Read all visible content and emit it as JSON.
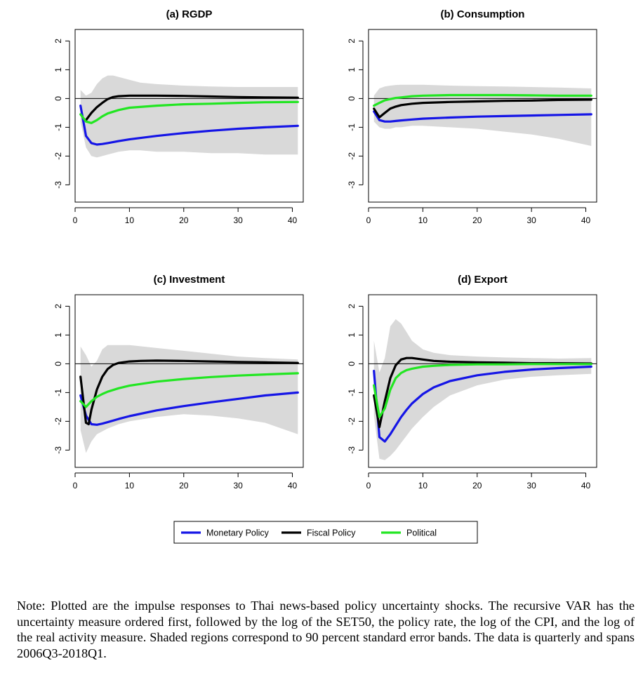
{
  "chart_data": {
    "type": "line",
    "series_styles": [
      {
        "name": "Monetary Policy",
        "color": "#1515e6"
      },
      {
        "name": "Fiscal Policy",
        "color": "#000000"
      },
      {
        "name": "Political",
        "color": "#22e622"
      }
    ],
    "band_color": "#d9d9d9",
    "xlim": [
      0,
      42
    ],
    "ylim": [
      -3.6,
      2.4
    ],
    "xticks": [
      0,
      10,
      20,
      30,
      40
    ],
    "yticks": [
      -3,
      -2,
      -1,
      0,
      1,
      2
    ],
    "zero_line": true,
    "legend": {
      "position": "bottom-center",
      "entries": [
        "Monetary Policy",
        "Fiscal Policy",
        "Political"
      ]
    },
    "panels": [
      {
        "title": "(a) RGDP",
        "band": {
          "x": [
            1,
            2,
            3,
            4,
            5,
            6,
            7,
            8,
            10,
            12,
            15,
            20,
            25,
            30,
            35,
            41
          ],
          "upper": [
            0.3,
            0.1,
            0.2,
            0.5,
            0.7,
            0.8,
            0.8,
            0.75,
            0.65,
            0.55,
            0.5,
            0.45,
            0.42,
            0.4,
            0.4,
            0.4
          ],
          "lower": [
            -0.8,
            -1.7,
            -2.0,
            -2.05,
            -2.0,
            -1.95,
            -1.9,
            -1.85,
            -1.8,
            -1.8,
            -1.85,
            -1.85,
            -1.9,
            -1.9,
            -1.95,
            -1.95
          ]
        },
        "series": [
          {
            "name": "Monetary Policy",
            "x": [
              1,
              2,
              3,
              4,
              5,
              6,
              8,
              10,
              15,
              20,
              25,
              30,
              35,
              41
            ],
            "values": [
              -0.25,
              -1.3,
              -1.55,
              -1.6,
              -1.58,
              -1.55,
              -1.48,
              -1.42,
              -1.3,
              -1.2,
              -1.12,
              -1.05,
              -1.0,
              -0.95
            ]
          },
          {
            "name": "Fiscal Policy",
            "x": [
              2,
              3,
              4,
              5,
              6,
              7,
              8,
              10,
              12,
              15,
              20,
              25,
              30,
              35,
              41
            ],
            "values": [
              -0.75,
              -0.5,
              -0.3,
              -0.15,
              -0.02,
              0.05,
              0.08,
              0.1,
              0.1,
              0.1,
              0.09,
              0.07,
              0.05,
              0.04,
              0.03
            ]
          },
          {
            "name": "Political",
            "x": [
              1,
              2,
              3,
              4,
              5,
              6,
              8,
              10,
              15,
              20,
              25,
              30,
              35,
              41
            ],
            "values": [
              -0.55,
              -0.8,
              -0.85,
              -0.75,
              -0.62,
              -0.52,
              -0.4,
              -0.32,
              -0.25,
              -0.2,
              -0.18,
              -0.15,
              -0.13,
              -0.12
            ]
          }
        ]
      },
      {
        "title": "(b) Consumption",
        "band": {
          "x": [
            1,
            2,
            3,
            4,
            5,
            6,
            8,
            10,
            15,
            20,
            25,
            30,
            35,
            41
          ],
          "upper": [
            0.1,
            0.35,
            0.42,
            0.45,
            0.47,
            0.48,
            0.48,
            0.48,
            0.45,
            0.43,
            0.42,
            0.4,
            0.38,
            0.35
          ],
          "lower": [
            -0.8,
            -1.0,
            -1.05,
            -1.05,
            -1.0,
            -1.0,
            -0.95,
            -0.95,
            -1.0,
            -1.05,
            -1.15,
            -1.25,
            -1.4,
            -1.65
          ]
        },
        "series": [
          {
            "name": "Monetary Policy",
            "x": [
              1,
              2,
              3,
              4,
              5,
              6,
              8,
              10,
              15,
              20,
              25,
              30,
              35,
              41
            ],
            "values": [
              -0.45,
              -0.75,
              -0.8,
              -0.8,
              -0.78,
              -0.76,
              -0.73,
              -0.7,
              -0.66,
              -0.63,
              -0.61,
              -0.59,
              -0.57,
              -0.55
            ]
          },
          {
            "name": "Fiscal Policy",
            "x": [
              1,
              2,
              3,
              4,
              5,
              6,
              8,
              10,
              15,
              20,
              25,
              30,
              35,
              41
            ],
            "values": [
              -0.35,
              -0.65,
              -0.5,
              -0.35,
              -0.28,
              -0.23,
              -0.18,
              -0.15,
              -0.12,
              -0.1,
              -0.08,
              -0.07,
              -0.05,
              -0.04
            ]
          },
          {
            "name": "Political",
            "x": [
              1,
              2,
              3,
              4,
              5,
              6,
              8,
              10,
              15,
              20,
              25,
              30,
              35,
              41
            ],
            "values": [
              -0.25,
              -0.15,
              -0.06,
              -0.02,
              0.02,
              0.04,
              0.08,
              0.1,
              0.12,
              0.12,
              0.12,
              0.11,
              0.1,
              0.1
            ]
          }
        ]
      },
      {
        "title": "(c) Investment",
        "band": {
          "x": [
            1,
            2,
            3,
            4,
            5,
            6,
            8,
            10,
            15,
            20,
            25,
            30,
            35,
            41
          ],
          "upper": [
            0.6,
            0.3,
            -0.1,
            0.1,
            0.5,
            0.65,
            0.65,
            0.65,
            0.55,
            0.45,
            0.35,
            0.25,
            0.2,
            0.15
          ],
          "lower": [
            -2.3,
            -3.1,
            -2.7,
            -2.45,
            -2.35,
            -2.25,
            -2.1,
            -2.0,
            -1.85,
            -1.75,
            -1.8,
            -1.9,
            -2.05,
            -2.45
          ]
        },
        "series": [
          {
            "name": "Monetary Policy",
            "x": [
              1,
              2,
              3,
              4,
              5,
              6,
              8,
              10,
              15,
              20,
              25,
              30,
              35,
              41
            ],
            "values": [
              -1.1,
              -1.8,
              -2.1,
              -2.12,
              -2.08,
              -2.03,
              -1.92,
              -1.82,
              -1.62,
              -1.47,
              -1.34,
              -1.22,
              -1.1,
              -1.0
            ]
          },
          {
            "name": "Fiscal Policy",
            "x": [
              1,
              2,
              2.5,
              3,
              4,
              5,
              6,
              7,
              8,
              10,
              12,
              15,
              20,
              25,
              30,
              35,
              41
            ],
            "values": [
              -0.45,
              -2.05,
              -2.1,
              -1.6,
              -0.9,
              -0.45,
              -0.18,
              -0.04,
              0.03,
              0.08,
              0.1,
              0.11,
              0.1,
              0.08,
              0.06,
              0.05,
              0.03
            ]
          },
          {
            "name": "Political",
            "x": [
              1,
              2,
              3,
              4,
              5,
              6,
              8,
              10,
              15,
              20,
              25,
              30,
              35,
              41
            ],
            "values": [
              -1.3,
              -1.5,
              -1.3,
              -1.15,
              -1.05,
              -0.97,
              -0.85,
              -0.76,
              -0.62,
              -0.53,
              -0.46,
              -0.41,
              -0.37,
              -0.33
            ]
          }
        ]
      },
      {
        "title": "(d) Export",
        "band": {
          "x": [
            1,
            2,
            3,
            4,
            5,
            6,
            7,
            8,
            10,
            12,
            15,
            20,
            25,
            30,
            35,
            41
          ],
          "upper": [
            0.8,
            -0.3,
            0.2,
            1.3,
            1.55,
            1.4,
            1.1,
            0.8,
            0.5,
            0.38,
            0.3,
            0.25,
            0.22,
            0.2,
            0.18,
            0.2
          ],
          "lower": [
            -1.8,
            -3.3,
            -3.35,
            -3.2,
            -3.0,
            -2.75,
            -2.5,
            -2.25,
            -1.85,
            -1.5,
            -1.1,
            -0.75,
            -0.55,
            -0.45,
            -0.4,
            -0.35
          ]
        },
        "series": [
          {
            "name": "Monetary Policy",
            "x": [
              1,
              2,
              3,
              4,
              5,
              6,
              7,
              8,
              10,
              12,
              15,
              20,
              25,
              30,
              35,
              41
            ],
            "values": [
              -0.25,
              -2.55,
              -2.7,
              -2.45,
              -2.15,
              -1.85,
              -1.6,
              -1.38,
              -1.05,
              -0.82,
              -0.6,
              -0.4,
              -0.28,
              -0.2,
              -0.15,
              -0.1
            ]
          },
          {
            "name": "Fiscal Policy",
            "x": [
              1,
              2,
              3,
              4,
              5,
              6,
              7,
              8,
              10,
              12,
              15,
              20,
              25,
              30,
              35,
              41
            ],
            "values": [
              -1.1,
              -2.2,
              -1.3,
              -0.5,
              -0.05,
              0.15,
              0.2,
              0.2,
              0.15,
              0.1,
              0.07,
              0.05,
              0.04,
              0.02,
              0.02,
              0.01
            ]
          },
          {
            "name": "Political",
            "x": [
              1,
              2,
              3,
              4,
              5,
              6,
              7,
              8,
              10,
              12,
              15,
              20,
              25,
              30,
              35,
              41
            ],
            "values": [
              -0.75,
              -1.85,
              -1.55,
              -0.9,
              -0.5,
              -0.32,
              -0.22,
              -0.17,
              -0.1,
              -0.07,
              -0.04,
              -0.02,
              -0.02,
              -0.01,
              -0.01,
              -0.01
            ]
          }
        ]
      }
    ]
  },
  "note": "Note: Plotted are the impulse responses to Thai news-based policy uncertainty shocks. The recursive VAR has the uncertainty measure ordered first, followed by the log of the SET50, the policy rate, the log of the CPI, and the log of the real activity measure. Shaded regions correspond to 90 percent standard error bands. The data is quarterly and spans 2006Q3-2018Q1."
}
